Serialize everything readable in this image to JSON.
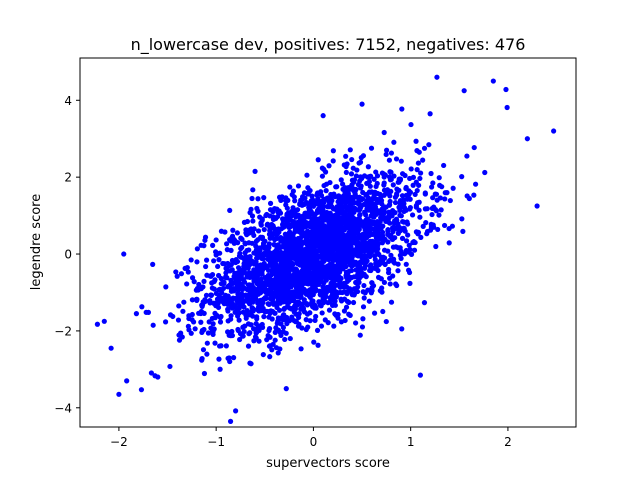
{
  "chart_data": {
    "type": "scatter",
    "title": "n_lowercase dev, positives: 7152, negatives: 476",
    "xlabel": "supervectors score",
    "ylabel": "legendre score",
    "xlim": [
      -2.4,
      2.7
    ],
    "ylim": [
      -4.5,
      5.1
    ],
    "xticks": [
      -2,
      -1,
      0,
      1,
      2
    ],
    "xtick_labels": [
      "−2",
      "−1",
      "0",
      "1",
      "2"
    ],
    "yticks": [
      -4,
      -2,
      0,
      2,
      4
    ],
    "ytick_labels": [
      "−4",
      "−2",
      "0",
      "2",
      "4"
    ],
    "grid": false,
    "legend": "none",
    "color": "#0000ff",
    "correlation": 0.55,
    "x_mean": 0.0,
    "x_std": 0.55,
    "y_mean": 0.0,
    "y_std": 1.0,
    "sampled_point_count": 3000,
    "outliers": [
      [
        -2.15,
        -1.75
      ],
      [
        -2.08,
        -2.45
      ],
      [
        -2.0,
        -3.65
      ],
      [
        -1.92,
        -3.3
      ],
      [
        -1.6,
        -3.2
      ],
      [
        -1.82,
        -1.55
      ],
      [
        -0.8,
        -4.08
      ],
      [
        -1.95,
        0.0
      ],
      [
        1.1,
        -3.15
      ],
      [
        1.27,
        4.6
      ],
      [
        1.85,
        4.5
      ],
      [
        1.55,
        4.25
      ],
      [
        1.98,
        4.28
      ],
      [
        2.47,
        3.2
      ],
      [
        2.2,
        3.0
      ],
      [
        2.3,
        1.25
      ],
      [
        0.1,
        3.6
      ],
      [
        0.5,
        3.9
      ],
      [
        1.2,
        3.65
      ],
      [
        -0.6,
        2.15
      ]
    ]
  }
}
